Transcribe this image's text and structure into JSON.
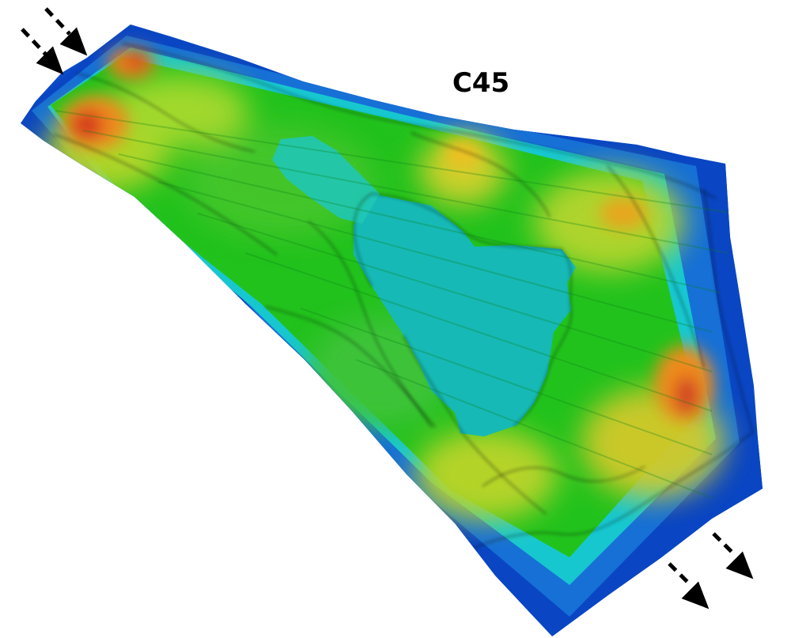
{
  "figure": {
    "label": "C45",
    "colors": {
      "background": "#ffffff",
      "low_blue": "#0b4bc8",
      "edge_blue": "#1670d6",
      "cyan": "#17c7cf",
      "teal_flat": "#16b9b5",
      "green": "#22c21d",
      "yellow_green": "#b8d62a",
      "yellow": "#f1d329",
      "orange": "#ee8a1e",
      "red": "#d5371d",
      "arrow": "#000000"
    },
    "arrows": [
      {
        "name": "inflow-arrow-left",
        "direction": "down-right"
      },
      {
        "name": "inflow-arrow-right",
        "direction": "down-right"
      },
      {
        "name": "outflow-arrow-left",
        "direction": "down-right"
      },
      {
        "name": "outflow-arrow-right",
        "direction": "down-right"
      }
    ]
  }
}
